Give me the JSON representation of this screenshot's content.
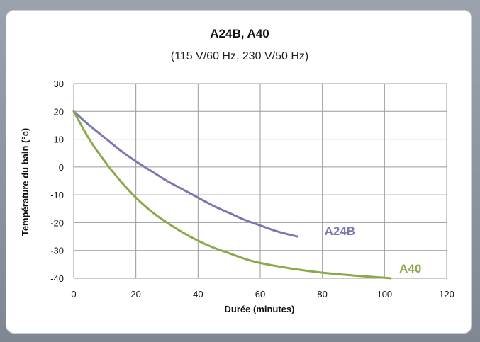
{
  "chart_data": {
    "type": "line",
    "title": "A24B, A40",
    "subtitle": "(115 V/60 Hz, 230 V/50 Hz)",
    "xlabel": "Durée (minutes)",
    "ylabel": "Température du bain (°c)",
    "xlim": [
      0,
      120
    ],
    "ylim": [
      -40,
      30
    ],
    "xticks": [
      0,
      20,
      40,
      60,
      80,
      100,
      120
    ],
    "yticks": [
      30,
      20,
      10,
      0,
      -10,
      -20,
      -30,
      -40
    ],
    "grid": true,
    "series": [
      {
        "name": "A24B",
        "color": "#7a78b0",
        "x": [
          0,
          5,
          10,
          15,
          20,
          25,
          30,
          35,
          40,
          45,
          50,
          55,
          60,
          65,
          70,
          72
        ],
        "y": [
          20,
          15,
          10.5,
          6,
          2,
          -1.5,
          -5,
          -8,
          -11,
          -14,
          -16.5,
          -19,
          -21,
          -23,
          -24.5,
          -25
        ]
      },
      {
        "name": "A40",
        "color": "#8aa94a",
        "x": [
          0,
          5,
          10,
          15,
          20,
          25,
          30,
          35,
          40,
          45,
          50,
          55,
          60,
          70,
          80,
          90,
          100,
          102
        ],
        "y": [
          20,
          10,
          2,
          -5,
          -11,
          -16,
          -20,
          -23.5,
          -26.5,
          -29,
          -31,
          -33,
          -34.5,
          -36.5,
          -38,
          -39,
          -39.8,
          -40
        ]
      }
    ]
  }
}
